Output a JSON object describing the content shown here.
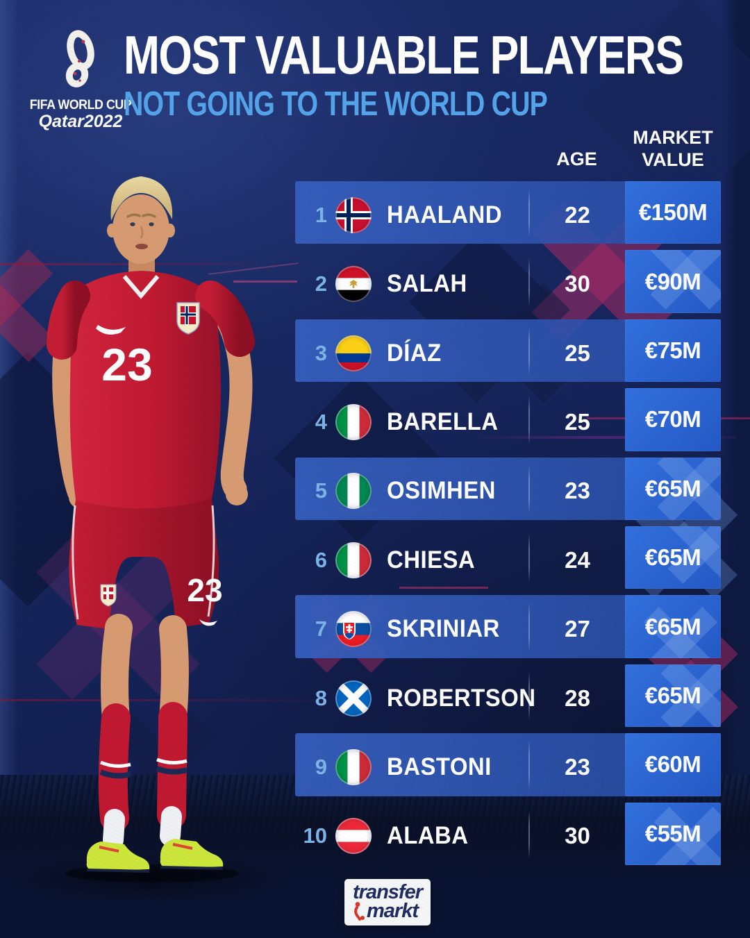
{
  "header": {
    "title": "MOST VALUABLE PLAYERS",
    "subtitle": "NOT GOING TO THE WORLD CUP"
  },
  "branding": {
    "fifa_line1": "FIFA WORLD CUP",
    "fifa_line2": "Qatar2022",
    "tm_line1": "transfer",
    "tm_line2": "markt"
  },
  "player_image": {
    "jersey_number": "23",
    "shorts_number": "23"
  },
  "table": {
    "age_header": "AGE",
    "market_value_header": "MARKET VALUE",
    "rows": [
      {
        "rank": "1",
        "flag": "norway",
        "player": "HAALAND",
        "age": "22",
        "market_value": "€150M"
      },
      {
        "rank": "2",
        "flag": "egypt",
        "player": "SALAH",
        "age": "30",
        "market_value": "€90M"
      },
      {
        "rank": "3",
        "flag": "colombia",
        "player": "DÍAZ",
        "age": "25",
        "market_value": "€75M"
      },
      {
        "rank": "4",
        "flag": "italy",
        "player": "BARELLA",
        "age": "25",
        "market_value": "€70M"
      },
      {
        "rank": "5",
        "flag": "nigeria",
        "player": "OSIMHEN",
        "age": "23",
        "market_value": "€65M"
      },
      {
        "rank": "6",
        "flag": "italy",
        "player": "CHIESA",
        "age": "24",
        "market_value": "€65M"
      },
      {
        "rank": "7",
        "flag": "slovakia",
        "player": "SKRINIAR",
        "age": "27",
        "market_value": "€65M"
      },
      {
        "rank": "8",
        "flag": "scotland",
        "player": "ROBERTSON",
        "age": "28",
        "market_value": "€65M"
      },
      {
        "rank": "9",
        "flag": "italy",
        "player": "BASTONI",
        "age": "23",
        "market_value": "€60M"
      },
      {
        "rank": "10",
        "flag": "austria",
        "player": "ALABA",
        "age": "30",
        "market_value": "€55M"
      }
    ]
  },
  "colors": {
    "background_navy": "#17265e",
    "value_cell_blue": "#2a63d4",
    "rank_blue": "#7cb3e6",
    "subtitle_blue": "#54a4ea",
    "cross_red": "#a82a62",
    "jersey_red": "#c01931"
  }
}
